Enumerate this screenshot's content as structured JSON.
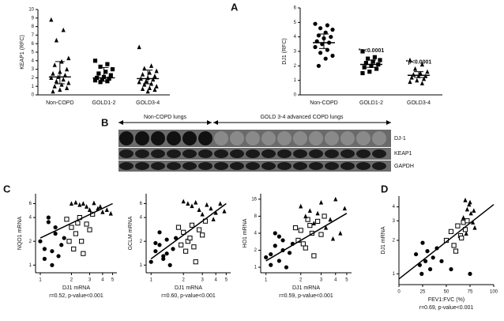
{
  "panel_labels": [
    "A",
    "B",
    "C",
    "D"
  ],
  "blot": {
    "groups": [
      "Non-COPD lungs",
      "GOLD 3-4 advanced COPD lungs"
    ],
    "rows": [
      "DJ-1",
      "KEAP1",
      "GAPDH"
    ]
  },
  "chart_data": [
    {
      "type": "dotplot",
      "ylabel": "KEAP1 (RFC)",
      "categories": [
        "Non-COPD",
        "GOLD1-2",
        "GOLD3-4"
      ],
      "markers": [
        "triangle",
        "square",
        "triangle"
      ],
      "color": "#000000",
      "points": [
        [
          8.8,
          7.6,
          6.4,
          4.3,
          3.9,
          3.5,
          3.0,
          2.7,
          2.5,
          2.3,
          2.1,
          2.0,
          1.8,
          1.6,
          1.4,
          1.2,
          1.0,
          0.8,
          0.6,
          0.4
        ],
        [
          4.0,
          3.6,
          3.3,
          3.0,
          2.7,
          2.5,
          2.3,
          2.1,
          2.0,
          1.9,
          1.8,
          1.7,
          1.6,
          1.5
        ],
        [
          5.6,
          3.4,
          3.1,
          2.8,
          2.6,
          2.4,
          2.2,
          2.0,
          1.9,
          1.8,
          1.6,
          1.5,
          1.3,
          1.2,
          1.0,
          0.8,
          0.7,
          0.6,
          0.4
        ]
      ],
      "centers": [
        2.1,
        2.0,
        1.9
      ],
      "whiskers": [
        [
          1.3,
          3.9
        ],
        [
          1.6,
          3.2
        ],
        [
          1.3,
          2.9
        ]
      ],
      "annotations": [
        null,
        null,
        null
      ],
      "ylim": [
        0,
        10
      ],
      "yticks": [
        0,
        1,
        2,
        3,
        4,
        5,
        6,
        7,
        8,
        9,
        10
      ]
    },
    {
      "type": "dotplot",
      "ylabel": "DJ1 (RFC)",
      "categories": [
        "Non-COPD",
        "GOLD1-2",
        "GOLD3-4"
      ],
      "markers": [
        "circle",
        "square",
        "triangle"
      ],
      "color": "#000000",
      "points": [
        [
          4.9,
          4.8,
          4.6,
          4.5,
          4.3,
          4.1,
          4.0,
          3.9,
          3.7,
          3.6,
          3.5,
          3.3,
          3.1,
          2.9,
          2.7,
          2.5,
          2.0
        ],
        [
          3.0,
          2.6,
          2.5,
          2.4,
          2.3,
          2.2,
          2.1,
          2.0,
          1.9,
          1.8,
          1.6,
          1.5
        ],
        [
          2.4,
          2.1,
          1.8,
          1.6,
          1.5,
          1.4,
          1.3,
          1.3,
          1.2,
          1.1,
          1.0,
          0.9,
          0.8
        ]
      ],
      "centers": [
        3.6,
        2.1,
        1.35
      ],
      "whiskers": [
        [
          3.2,
          4.2
        ],
        [
          1.9,
          2.4
        ],
        [
          1.2,
          1.6
        ]
      ],
      "annotations": [
        null,
        "*p<0.0001",
        "*p<0.0001"
      ],
      "ylim": [
        0,
        6
      ],
      "yticks": [
        0,
        1,
        2,
        3,
        4,
        5,
        6
      ]
    },
    {
      "type": "scatter",
      "ylabel": "NQO1 mRNA",
      "xlabel": "DJ1 mRNA",
      "note": "r=0.52, p-value<0.001",
      "xlog": true,
      "ylog": true,
      "xlim": [
        0.9,
        5.5
      ],
      "xticks": [
        1,
        2,
        3,
        4,
        5
      ],
      "ylim": [
        0.8,
        8
      ],
      "yticks": [
        1,
        2,
        4,
        6
      ],
      "series": [
        {
          "marker": "circle",
          "color": "#000000",
          "x": [
            1.0,
            1.1,
            1.2,
            1.3,
            1.4,
            1.5,
            1.6,
            1.2,
            1.4,
            1.7,
            1.1,
            1.3
          ],
          "y": [
            2.0,
            1.2,
            3.5,
            1.5,
            2.5,
            1.3,
            1.8,
            4.0,
            3.0,
            2.2,
            1.6,
            1.0
          ]
        },
        {
          "marker": "open-square",
          "color": "#000000",
          "x": [
            1.9,
            2.0,
            2.2,
            2.4,
            2.6,
            2.8,
            3.0,
            3.2,
            2.1,
            2.5,
            1.8,
            2.3
          ],
          "y": [
            2.0,
            3.0,
            2.5,
            4.0,
            1.4,
            3.3,
            2.8,
            4.4,
            1.6,
            2.0,
            3.8,
            3.4
          ]
        },
        {
          "marker": "triangle",
          "color": "#000000",
          "x": [
            2.0,
            2.2,
            2.4,
            2.6,
            2.8,
            3.0,
            3.3,
            3.6,
            4.0,
            4.4,
            4.8,
            3.8
          ],
          "y": [
            6.0,
            6.2,
            5.8,
            6.0,
            5.5,
            5.0,
            6.1,
            5.2,
            4.7,
            5.0,
            4.5,
            5.5
          ]
        }
      ],
      "fit": [
        [
          1,
          2.2
        ],
        [
          5,
          6.0
        ]
      ]
    },
    {
      "type": "scatter",
      "ylabel": "GCLM mRNA",
      "xlabel": "DJ1 mRNA",
      "note": "r=0.60, p-value<0.001",
      "xlog": true,
      "ylog": true,
      "xlim": [
        0.9,
        5.5
      ],
      "xticks": [
        1,
        2,
        3,
        4,
        5
      ],
      "ylim": [
        0.8,
        8
      ],
      "yticks": [
        1,
        2,
        4,
        6
      ],
      "series": [
        {
          "marker": "circle",
          "color": "#000000",
          "x": [
            1.0,
            1.1,
            1.2,
            1.3,
            1.4,
            1.5,
            1.6,
            1.2,
            1.4,
            1.7,
            1.1,
            1.3
          ],
          "y": [
            1.1,
            1.5,
            1.8,
            1.2,
            2.1,
            1.0,
            1.6,
            2.6,
            1.4,
            2.2,
            1.9,
            1.3
          ]
        },
        {
          "marker": "open-square",
          "color": "#000000",
          "x": [
            1.9,
            2.0,
            2.2,
            2.4,
            2.6,
            2.8,
            3.0,
            3.2,
            2.1,
            2.5,
            1.8,
            2.3
          ],
          "y": [
            1.8,
            2.6,
            2.0,
            3.2,
            1.1,
            2.8,
            2.4,
            3.6,
            1.5,
            1.7,
            3.0,
            2.2
          ]
        },
        {
          "marker": "triangle",
          "color": "#000000",
          "x": [
            2.0,
            2.2,
            2.4,
            2.6,
            2.8,
            3.0,
            3.3,
            3.6,
            4.0,
            4.4,
            4.8,
            3.8
          ],
          "y": [
            6.4,
            6.0,
            5.6,
            6.2,
            5.0,
            4.4,
            5.8,
            5.2,
            4.6,
            6.0,
            4.8,
            3.8
          ]
        }
      ],
      "fit": [
        [
          1,
          1.2
        ],
        [
          5,
          6.0
        ]
      ]
    },
    {
      "type": "scatter",
      "ylabel": "HO1 mRNA",
      "xlabel": "DJ1 mRNA",
      "note": "r=0.59, p-value<0.001",
      "xlog": true,
      "ylog": true,
      "xlim": [
        0.9,
        5.5
      ],
      "xticks": [
        1,
        2,
        3,
        4,
        5
      ],
      "ylim": [
        0.8,
        20
      ],
      "yticks": [
        1,
        2,
        4,
        8,
        16
      ],
      "series": [
        {
          "marker": "circle",
          "color": "#000000",
          "x": [
            1.0,
            1.1,
            1.2,
            1.3,
            1.4,
            1.5,
            1.6,
            1.2,
            1.4,
            1.7,
            1.1,
            1.3
          ],
          "y": [
            1.5,
            1.1,
            2.4,
            1.3,
            3.0,
            1.0,
            1.8,
            4.0,
            2.0,
            2.6,
            1.7,
            3.5
          ]
        },
        {
          "marker": "open-square",
          "color": "#000000",
          "x": [
            1.9,
            2.0,
            2.2,
            2.4,
            2.6,
            2.8,
            3.0,
            3.2,
            2.1,
            2.5,
            1.8,
            2.3
          ],
          "y": [
            3.0,
            4.5,
            2.2,
            5.5,
            1.6,
            6.5,
            3.8,
            8.0,
            2.6,
            4.0,
            5.0,
            7.0
          ]
        },
        {
          "marker": "triangle",
          "color": "#000000",
          "x": [
            2.0,
            2.2,
            2.4,
            2.6,
            2.8,
            3.0,
            3.3,
            3.6,
            4.0,
            4.4,
            4.8,
            3.8
          ],
          "y": [
            12,
            8,
            10,
            6,
            9,
            14,
            5,
            7,
            16,
            4,
            11,
            3.2
          ]
        }
      ],
      "fit": [
        [
          1,
          1.3
        ],
        [
          5,
          9
        ]
      ]
    },
    {
      "type": "scatter",
      "ylabel": "DJ1 mRNA",
      "xlabel": "FEV1:FVC (%)",
      "note": "r=0.69, p-value<0.001",
      "xlog": false,
      "ylog": true,
      "xlim": [
        0,
        100
      ],
      "xticks": [
        0,
        25,
        50,
        75,
        100
      ],
      "ylim": [
        0.8,
        5
      ],
      "yticks": [
        1,
        2,
        3,
        4
      ],
      "series": [
        {
          "marker": "circle",
          "color": "#000000",
          "x": [
            18,
            22,
            25,
            28,
            30,
            33,
            36,
            40,
            24,
            45,
            55,
            75
          ],
          "y": [
            1.5,
            1.2,
            1.9,
            1.3,
            1.6,
            1.1,
            1.4,
            1.7,
            1.0,
            1.3,
            1.1,
            1.0
          ]
        },
        {
          "marker": "open-square",
          "color": "#000000",
          "x": [
            50,
            55,
            58,
            62,
            65,
            68,
            70,
            72,
            60,
            66
          ],
          "y": [
            2.0,
            2.4,
            1.8,
            2.7,
            2.2,
            2.9,
            2.5,
            3.0,
            1.6,
            2.1
          ]
        },
        {
          "marker": "triangle",
          "color": "#000000",
          "x": [
            68,
            70,
            72,
            74,
            76,
            78,
            80,
            75,
            71,
            79
          ],
          "y": [
            3.2,
            4.6,
            3.8,
            4.2,
            3.5,
            2.9,
            2.6,
            4.4,
            2.3,
            3.7
          ]
        }
      ],
      "fit": [
        [
          0,
          0.9
        ],
        [
          100,
          4.2
        ]
      ]
    }
  ]
}
